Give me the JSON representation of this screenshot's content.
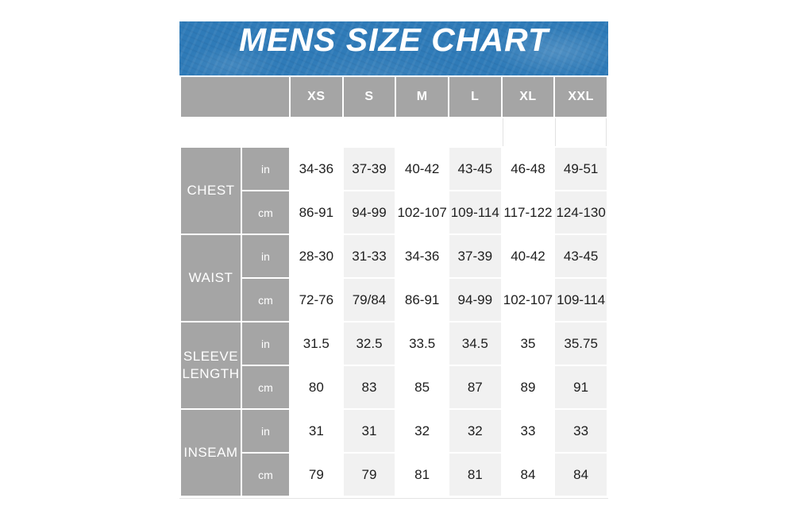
{
  "title": "MENS SIZE CHART",
  "colors": {
    "banner_blue": "#2f7bb8",
    "header_gray": "#a5a5a5",
    "alt_column_gray": "#f1f1f1",
    "data_text": "#1e1e1e",
    "header_text": "#ffffff"
  },
  "chart_data": {
    "type": "table",
    "title": "MENS SIZE CHART",
    "size_columns": [
      "XS",
      "S",
      "M",
      "L",
      "XL",
      "XXL"
    ],
    "sections": [
      {
        "label": "CHEST",
        "rows": [
          {
            "unit": "in",
            "values": [
              "34-36",
              "37-39",
              "40-42",
              "43-45",
              "46-48",
              "49-51"
            ]
          },
          {
            "unit": "cm",
            "values": [
              "86-91",
              "94-99",
              "102-107",
              "109-114",
              "117-122",
              "124-130"
            ]
          }
        ]
      },
      {
        "label": "WAIST",
        "rows": [
          {
            "unit": "in",
            "values": [
              "28-30",
              "31-33",
              "34-36",
              "37-39",
              "40-42",
              "43-45"
            ]
          },
          {
            "unit": "cm",
            "values": [
              "72-76",
              "79/84",
              "86-91",
              "94-99",
              "102-107",
              "109-114"
            ]
          }
        ]
      },
      {
        "label": "SLEEVE LENGTH",
        "rows": [
          {
            "unit": "in",
            "values": [
              "31.5",
              "32.5",
              "33.5",
              "34.5",
              "35",
              "35.75"
            ]
          },
          {
            "unit": "cm",
            "values": [
              "80",
              "83",
              "85",
              "87",
              "89",
              "91"
            ]
          }
        ]
      },
      {
        "label": "INSEAM",
        "rows": [
          {
            "unit": "in",
            "values": [
              "31",
              "31",
              "32",
              "32",
              "33",
              "33"
            ]
          },
          {
            "unit": "cm",
            "values": [
              "79",
              "79",
              "81",
              "81",
              "84",
              "84"
            ]
          }
        ]
      }
    ]
  }
}
